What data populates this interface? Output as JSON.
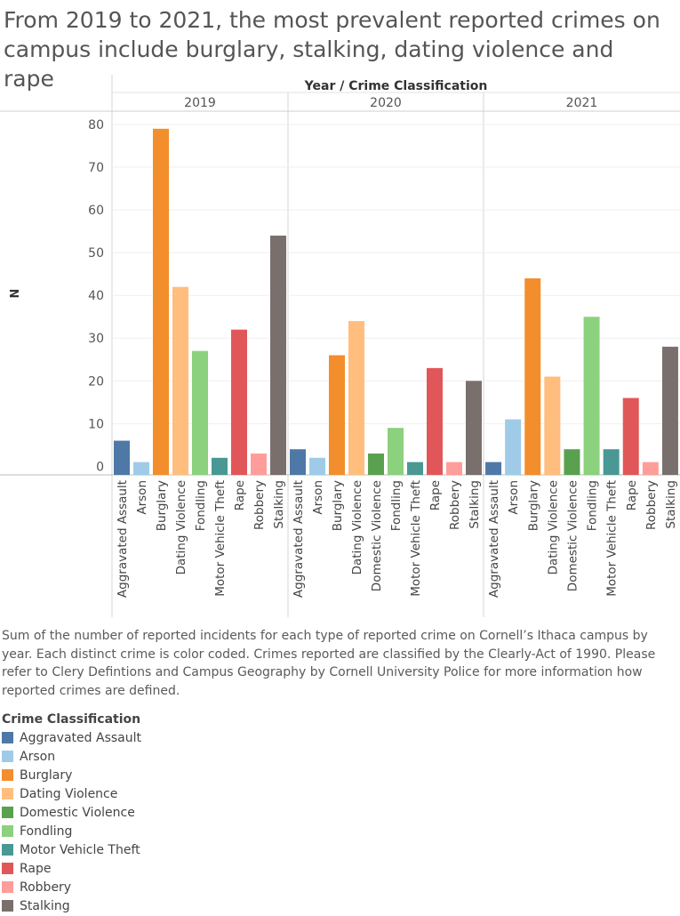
{
  "title": "From 2019 to 2021, the most prevalent reported crimes on campus include burglary, stalking, dating violence and rape",
  "caption": "Sum of the number of reported incidents for each type of reported crime on Cornell’s Ithaca campus by year. Each distinct crime is color coded. Crimes reported are classified by the Clearly-Act of 1990. Please refer to Clery Defintions and Campus Geography by Cornell University Police for more information how reported crimes are defined.",
  "legend": {
    "title": "Crime Classification",
    "items": [
      {
        "label": "Aggravated Assault",
        "color": "#4e79a7"
      },
      {
        "label": "Arson",
        "color": "#a0cbe8"
      },
      {
        "label": "Burglary",
        "color": "#f28e2b"
      },
      {
        "label": "Dating Violence",
        "color": "#ffbe7d"
      },
      {
        "label": "Domestic Violence",
        "color": "#59a14f"
      },
      {
        "label": "Fondling",
        "color": "#8cd17d"
      },
      {
        "label": "Motor Vehicle Theft",
        "color": "#499894"
      },
      {
        "label": "Rape",
        "color": "#e15759"
      },
      {
        "label": "Robbery",
        "color": "#ff9d9a"
      },
      {
        "label": "Stalking",
        "color": "#79706e"
      }
    ]
  },
  "chart_data": {
    "type": "bar",
    "header": "Year / Crime Classification",
    "ylabel": "N",
    "ylim": [
      -2,
      80
    ],
    "yticks": [
      0,
      10,
      20,
      30,
      40,
      50,
      60,
      70,
      80
    ],
    "panels": [
      {
        "year": "2019",
        "categories": [
          "Aggravated Assault",
          "Arson",
          "Burglary",
          "Dating Violence",
          "Fondling",
          "Motor Vehicle Theft",
          "Rape",
          "Robbery",
          "Stalking"
        ],
        "values": [
          6,
          1,
          79,
          42,
          27,
          2,
          32,
          3,
          54
        ]
      },
      {
        "year": "2020",
        "categories": [
          "Aggravated Assault",
          "Arson",
          "Burglary",
          "Dating Violence",
          "Domestic Violence",
          "Fondling",
          "Motor Vehicle Theft",
          "Rape",
          "Robbery",
          "Stalking"
        ],
        "values": [
          4,
          2,
          26,
          34,
          3,
          9,
          1,
          23,
          1,
          20
        ]
      },
      {
        "year": "2021",
        "categories": [
          "Aggravated Assault",
          "Arson",
          "Burglary",
          "Dating Violence",
          "Domestic Violence",
          "Fondling",
          "Motor Vehicle Theft",
          "Rape",
          "Robbery",
          "Stalking"
        ],
        "values": [
          1,
          11,
          44,
          21,
          4,
          35,
          4,
          16,
          1,
          28
        ]
      }
    ]
  }
}
